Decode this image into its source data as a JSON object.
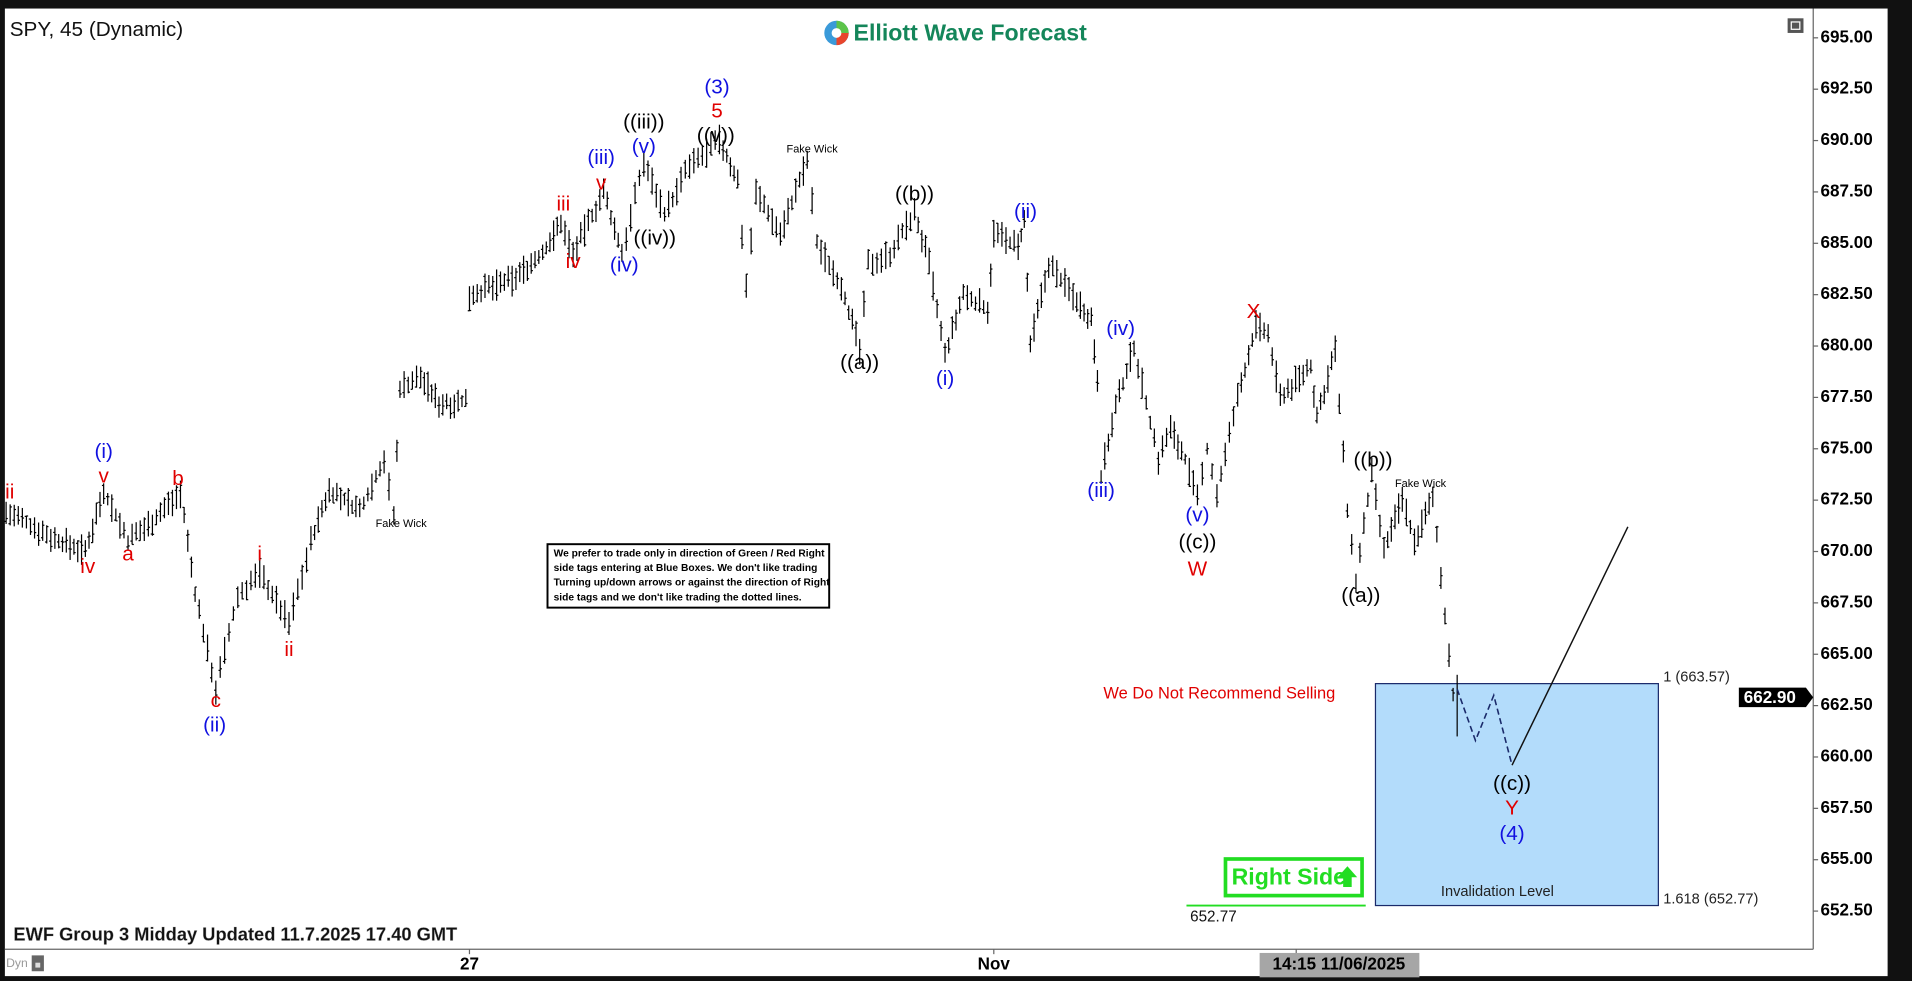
{
  "header": {
    "symbol_title": "SPY, 45 (Dynamic)",
    "logo_text": "Elliott Wave Forecast"
  },
  "footer": {
    "update_text": "EWF Group 3 Midday Updated 11.7.2025 17.40 GMT",
    "dyn_label": "Dyn"
  },
  "note_box": {
    "lines": [
      "We prefer to trade only in direction of Green / Red Right",
      "side tags entering at Blue Boxes. We don't like trading",
      "Turning up/down arrows or against the direction of Right",
      "side tags and we don't like trading the dotted lines."
    ]
  },
  "chart_data": {
    "type": "ohlc",
    "symbol": "SPY",
    "interval": "45",
    "ylim": [
      651,
      696
    ],
    "y_ticks": [
      "695.00",
      "692.50",
      "690.00",
      "687.50",
      "685.00",
      "682.50",
      "680.00",
      "677.50",
      "675.00",
      "672.50",
      "670.00",
      "667.50",
      "665.00",
      "662.50",
      "660.00",
      "657.50",
      "655.00",
      "652.50"
    ],
    "x_tick_labels": [
      "27",
      "Nov"
    ],
    "crosshair_time": "14:15 11/06/2025",
    "last_price": "662.90",
    "swing_prices": [
      671.9,
      671.3,
      670.6,
      670.0,
      673.0,
      670.5,
      671.5,
      672.9,
      668,
      663.3,
      667.8,
      669.0,
      666.5,
      670.5,
      673.0,
      672.0,
      674.5,
      671.7,
      678.0,
      678.5,
      677.2,
      677.3,
      682.5,
      683.2,
      684.5,
      686.0,
      684.5,
      687.5,
      684.5,
      689.0,
      686.5,
      687.5,
      688.5,
      690.0,
      688,
      683,
      687.5,
      685.5,
      689.0,
      685,
      683,
      679.8,
      684.0,
      684.5,
      686.5,
      684,
      679.5,
      682.5,
      681.8,
      685.5,
      684.8,
      686.0,
      680.0,
      684.0,
      682.5,
      681.3,
      678.5,
      673.7,
      677,
      680.0,
      674.5,
      676.0,
      674.5,
      672.5,
      675.0,
      672.8,
      677.5,
      681.0,
      680.5,
      677.5,
      679.0,
      676.5,
      679.8,
      672,
      668.5,
      673.8,
      670.0,
      672.6,
      670.5,
      672.6,
      667,
      661.0
    ],
    "projection_prices": [
      663.3,
      660.8,
      663.0,
      659.6,
      671.2
    ],
    "blue_box": {
      "top": 663.57,
      "bottom": 652.77,
      "top_label": "1 (663.57)",
      "bottom_label": "1.618 (652.77)",
      "caption": "Invalidation Level"
    },
    "invalidation": {
      "price_label": "652.77",
      "color": "#22dd22"
    },
    "right_side_tag": {
      "text": "Right Side",
      "direction": "up",
      "color": "#22dd22"
    },
    "warning_text": "We Do Not Recommend Selling",
    "annotations": [
      {
        "text": "ii",
        "color": "#e00000"
      },
      {
        "text": "(i)",
        "color": "#1010e0"
      },
      {
        "text": "v",
        "color": "#e00000"
      },
      {
        "text": "iv",
        "color": "#e00000"
      },
      {
        "text": "a",
        "color": "#e00000"
      },
      {
        "text": "b",
        "color": "#e00000"
      },
      {
        "text": "c",
        "color": "#e00000"
      },
      {
        "text": "(ii)",
        "color": "#1010e0"
      },
      {
        "text": "i",
        "color": "#e00000"
      },
      {
        "text": "ii",
        "color": "#e00000"
      },
      {
        "text": "Fake Wick",
        "color": "#000000"
      },
      {
        "text": "iii",
        "color": "#e00000"
      },
      {
        "text": "iv",
        "color": "#e00000"
      },
      {
        "text": "v",
        "color": "#e00000"
      },
      {
        "text": "(iii)",
        "color": "#1010e0"
      },
      {
        "text": "(iv)",
        "color": "#1010e0"
      },
      {
        "text": "(v)",
        "color": "#1010e0"
      },
      {
        "text": "((iii))",
        "color": "#000000"
      },
      {
        "text": "((iv))",
        "color": "#000000"
      },
      {
        "text": "((v))",
        "color": "#000000"
      },
      {
        "text": "5",
        "color": "#e00000"
      },
      {
        "text": "(3)",
        "color": "#1010e0"
      },
      {
        "text": "Fake Wick",
        "color": "#000000"
      },
      {
        "text": "((a))",
        "color": "#000000"
      },
      {
        "text": "((b))",
        "color": "#000000"
      },
      {
        "text": "(i)",
        "color": "#1010e0"
      },
      {
        "text": "(ii)",
        "color": "#1010e0"
      },
      {
        "text": "(iv)",
        "color": "#1010e0"
      },
      {
        "text": "(iii)",
        "color": "#1010e0"
      },
      {
        "text": "(v)",
        "color": "#1010e0"
      },
      {
        "text": "((c))",
        "color": "#000000"
      },
      {
        "text": "W",
        "color": "#e00000"
      },
      {
        "text": "X",
        "color": "#e00000"
      },
      {
        "text": "((b))",
        "color": "#000000"
      },
      {
        "text": "((a))",
        "color": "#000000"
      },
      {
        "text": "Fake Wick",
        "color": "#000000"
      },
      {
        "text": "((c))",
        "color": "#000000"
      },
      {
        "text": "Y",
        "color": "#e00000"
      },
      {
        "text": "(4)",
        "color": "#1010e0"
      }
    ]
  }
}
